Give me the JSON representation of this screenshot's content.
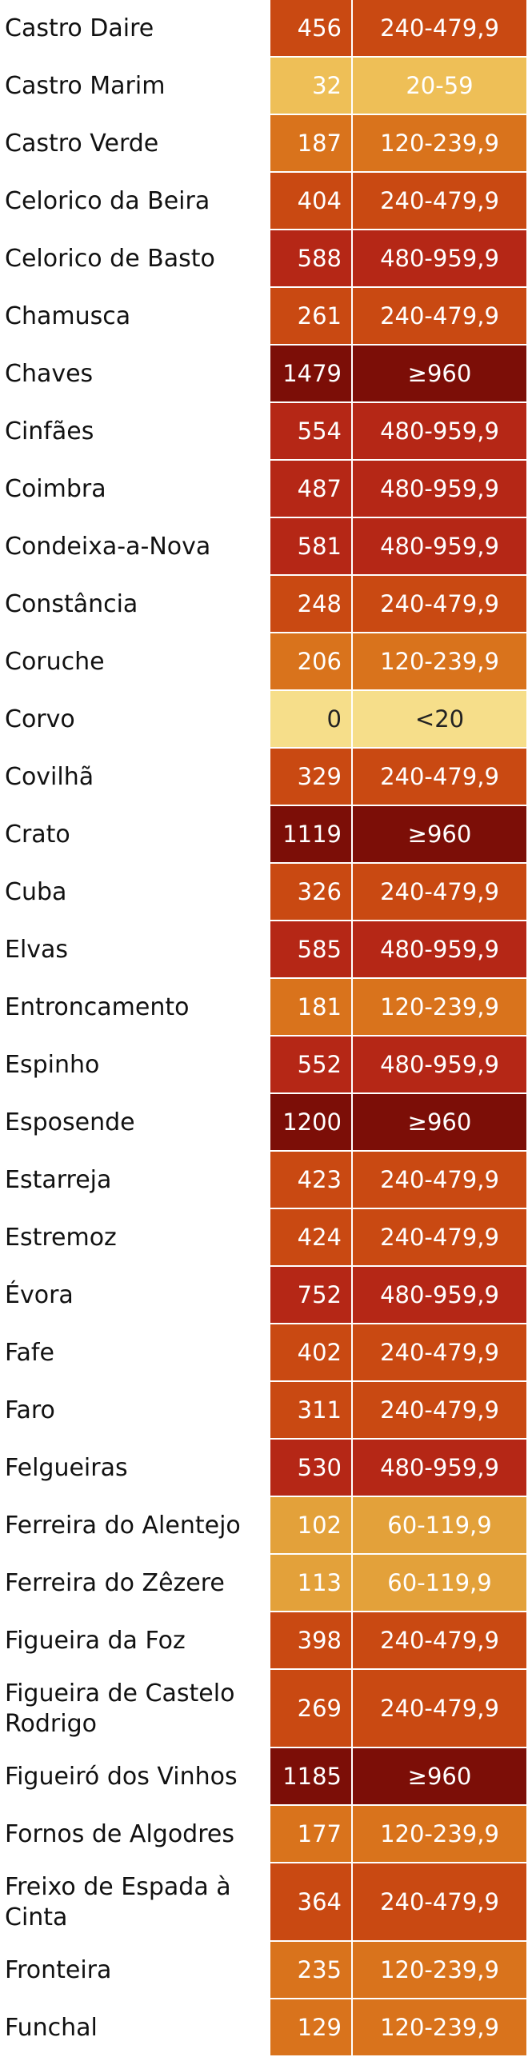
{
  "colors": {
    "<20": "#f6de8a",
    "20-59": "#eebf57",
    "60-119,9": "#e3a13a",
    "120-239,9": "#d9731c",
    "240-479,9": "#c94912",
    "480-959,9": "#b52716",
    "≥960": "#7c0e07"
  },
  "rows": [
    {
      "name": "Castro Daire",
      "value": "456",
      "range": "240-479,9"
    },
    {
      "name": "Castro Marim",
      "value": "32",
      "range": "20-59"
    },
    {
      "name": "Castro Verde",
      "value": "187",
      "range": "120-239,9"
    },
    {
      "name": "Celorico da Beira",
      "value": "404",
      "range": "240-479,9"
    },
    {
      "name": "Celorico de Basto",
      "value": "588",
      "range": "480-959,9"
    },
    {
      "name": "Chamusca",
      "value": "261",
      "range": "240-479,9"
    },
    {
      "name": "Chaves",
      "value": "1479",
      "range": "≥960"
    },
    {
      "name": "Cinfães",
      "value": "554",
      "range": "480-959,9"
    },
    {
      "name": "Coimbra",
      "value": "487",
      "range": "480-959,9"
    },
    {
      "name": "Condeixa-a-Nova",
      "value": "581",
      "range": "480-959,9"
    },
    {
      "name": "Constância",
      "value": "248",
      "range": "240-479,9"
    },
    {
      "name": "Coruche",
      "value": "206",
      "range": "120-239,9"
    },
    {
      "name": "Corvo",
      "value": "0",
      "range": "<20"
    },
    {
      "name": "Covilhã",
      "value": "329",
      "range": "240-479,9"
    },
    {
      "name": "Crato",
      "value": "1119",
      "range": "≥960"
    },
    {
      "name": "Cuba",
      "value": "326",
      "range": "240-479,9"
    },
    {
      "name": "Elvas",
      "value": "585",
      "range": "480-959,9"
    },
    {
      "name": "Entroncamento",
      "value": "181",
      "range": "120-239,9"
    },
    {
      "name": "Espinho",
      "value": "552",
      "range": "480-959,9"
    },
    {
      "name": "Esposende",
      "value": "1200",
      "range": "≥960"
    },
    {
      "name": "Estarreja",
      "value": "423",
      "range": "240-479,9"
    },
    {
      "name": "Estremoz",
      "value": "424",
      "range": "240-479,9"
    },
    {
      "name": "Évora",
      "value": "752",
      "range": "480-959,9"
    },
    {
      "name": "Fafe",
      "value": "402",
      "range": "240-479,9"
    },
    {
      "name": "Faro",
      "value": "311",
      "range": "240-479,9"
    },
    {
      "name": "Felgueiras",
      "value": "530",
      "range": "480-959,9"
    },
    {
      "name": "Ferreira do Alentejo",
      "value": "102",
      "range": "60-119,9"
    },
    {
      "name": "Ferreira do Zêzere",
      "value": "113",
      "range": "60-119,9"
    },
    {
      "name": "Figueira da Foz",
      "value": "398",
      "range": "240-479,9"
    },
    {
      "name": "Figueira de Castelo Rodrigo",
      "value": "269",
      "range": "240-479,9"
    },
    {
      "name": "Figueiró dos Vinhos",
      "value": "1185",
      "range": "≥960"
    },
    {
      "name": "Fornos de Algodres",
      "value": "177",
      "range": "120-239,9"
    },
    {
      "name": "Freixo de Espada à Cinta",
      "value": "364",
      "range": "240-479,9"
    },
    {
      "name": "Fronteira",
      "value": "235",
      "range": "120-239,9"
    },
    {
      "name": "Funchal",
      "value": "129",
      "range": "120-239,9"
    }
  ]
}
